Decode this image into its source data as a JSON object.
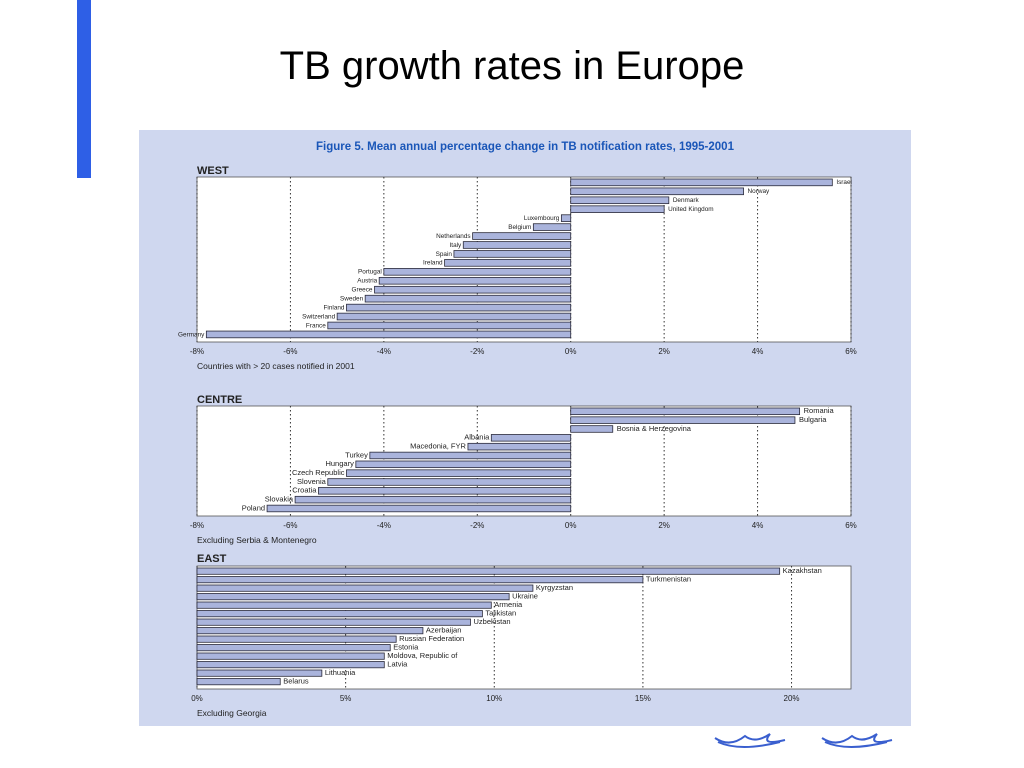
{
  "slide": {
    "title": "TB growth rates in Europe",
    "accent_color": "#2e5fe6"
  },
  "figure": {
    "title": "Figure 5. Mean annual percentage change in TB notification rates, 1995-2001",
    "title_color": "#1a56b8",
    "background_color": "#cfd7ef",
    "bar_color": "#aab4dc"
  },
  "logo": {
    "icon": "who-europe-logo-icon",
    "color": "#3a5fcf"
  },
  "chart_data": [
    {
      "type": "bar",
      "orientation": "horizontal",
      "title": "WEST",
      "note": "Countries with > 20 cases notified in 2001",
      "xlim": [
        -8,
        6
      ],
      "ticks": [
        -8,
        -6,
        -4,
        -2,
        0,
        2,
        4,
        6
      ],
      "tick_labels": [
        "-8%",
        "-6%",
        "-4%",
        "-2%",
        "0%",
        "2%",
        "4%",
        "6%"
      ],
      "grid": "vertical dotted",
      "categories": [
        "Israel",
        "Norway",
        "Denmark",
        "United Kingdom",
        "Luxembourg",
        "Belgium",
        "Netherlands",
        "Italy",
        "Spain",
        "Ireland",
        "Portugal",
        "Austria",
        "Greece",
        "Sweden",
        "Finland",
        "Switzerland",
        "France",
        "Germany"
      ],
      "values": [
        5.6,
        3.7,
        2.1,
        2.0,
        -0.2,
        -0.8,
        -2.1,
        -2.3,
        -2.5,
        -2.7,
        -4.0,
        -4.1,
        -4.2,
        -4.4,
        -4.8,
        -5.0,
        -5.2,
        -7.8
      ]
    },
    {
      "type": "bar",
      "orientation": "horizontal",
      "title": "CENTRE",
      "note": "Excluding Serbia & Montenegro",
      "xlim": [
        -8,
        6
      ],
      "ticks": [
        -8,
        -6,
        -4,
        -2,
        0,
        2,
        4,
        6
      ],
      "tick_labels": [
        "-8%",
        "-6%",
        "-4%",
        "-2%",
        "0%",
        "2%",
        "4%",
        "6%"
      ],
      "grid": "vertical dotted",
      "categories": [
        "Romania",
        "Bulgaria",
        "Bosnia & Herzegovina",
        "Albania",
        "Macedonia, FYR",
        "Turkey",
        "Hungary",
        "Czech Republic",
        "Slovenia",
        "Croatia",
        "Slovakia",
        "Poland"
      ],
      "values": [
        4.9,
        4.8,
        0.9,
        -1.7,
        -2.2,
        -4.3,
        -4.6,
        -4.8,
        -5.2,
        -5.4,
        -5.9,
        -6.5
      ]
    },
    {
      "type": "bar",
      "orientation": "horizontal",
      "title": "EAST",
      "note": "Excluding Georgia",
      "xlim": [
        0,
        22
      ],
      "ticks": [
        0,
        5,
        10,
        15,
        20
      ],
      "tick_labels": [
        "0%",
        "5%",
        "10%",
        "15%",
        "20%"
      ],
      "grid": "vertical dotted",
      "categories": [
        "Kazakhstan",
        "Turkmenistan",
        "Kyrgyzstan",
        "Ukraine",
        "Armenia",
        "Tajikistan",
        "Uzbekistan",
        "Azerbaijan",
        "Russian Federation",
        "Estonia",
        "Moldova, Republic of",
        "Latvia",
        "Lithuania",
        "Belarus"
      ],
      "values": [
        19.6,
        15.0,
        11.3,
        10.5,
        9.9,
        9.6,
        9.2,
        7.6,
        6.7,
        6.5,
        6.3,
        6.3,
        4.2,
        2.8
      ]
    }
  ]
}
